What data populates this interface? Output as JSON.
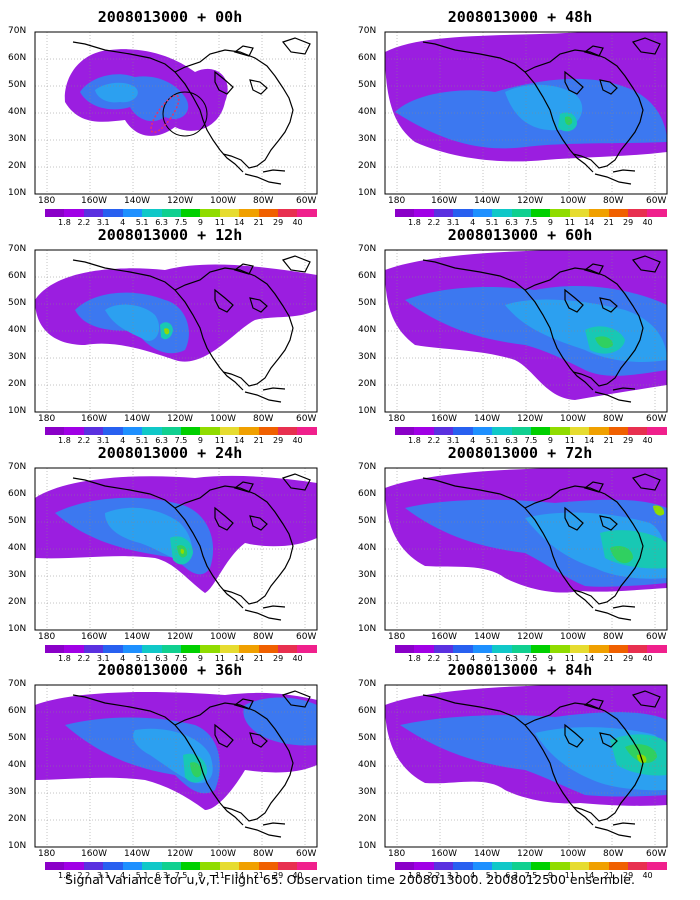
{
  "caption": "Signal Variance for u,v,T. Flight 65. Observation time 2008013000. 2008012500 ensemble.",
  "panels": [
    {
      "title": "2008013000 + 00h"
    },
    {
      "title": "2008013000 + 48h"
    },
    {
      "title": "2008013000 + 12h"
    },
    {
      "title": "2008013000 + 60h"
    },
    {
      "title": "2008013000 + 24h"
    },
    {
      "title": "2008013000 + 72h"
    },
    {
      "title": "2008013000 + 36h"
    },
    {
      "title": "2008013000 + 84h"
    }
  ],
  "lat_labels": [
    "70N",
    "60N",
    "50N",
    "40N",
    "30N",
    "20N",
    "10N"
  ],
  "lon_labels": [
    "180",
    "160W",
    "140W",
    "120W",
    "100W",
    "80W",
    "60W"
  ],
  "colorbar": {
    "labels": [
      "1.8",
      "2.2",
      "3.1",
      "4",
      "5.1",
      "6.3",
      "7.5",
      "9",
      "11",
      "14",
      "21",
      "29",
      "40"
    ],
    "colors": [
      "#8a00c8",
      "#a000e6",
      "#5a30e0",
      "#2860f0",
      "#1e90ff",
      "#10c8c8",
      "#10d090",
      "#00d000",
      "#90dc00",
      "#e6dc30",
      "#f0a000",
      "#f06000",
      "#e83050",
      "#f0208c"
    ]
  },
  "fill_colors": {
    "purple": "#9b1ee0",
    "blue": "#3c78f0",
    "lightblue": "#2ca0f0",
    "teal": "#18c8b4",
    "green": "#30d060",
    "lime": "#90dc00"
  }
}
